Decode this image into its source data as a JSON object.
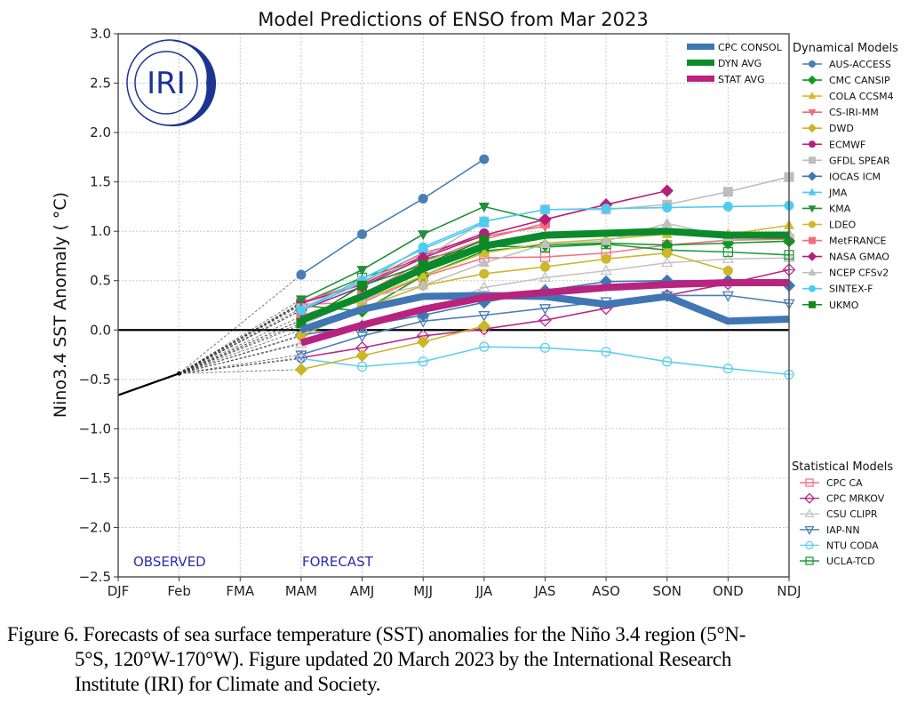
{
  "chart_data": {
    "type": "line",
    "title": "Model Predictions of ENSO from Mar 2023",
    "xlabel": "",
    "ylabel": "Nino3.4 SST Anomaly ( °C)",
    "ylim": [
      -2.5,
      3.0
    ],
    "yticks": [
      3.0,
      2.5,
      2.0,
      1.5,
      1.0,
      0.5,
      0.0,
      -0.5,
      -1.0,
      -1.5,
      -2.0,
      -2.5
    ],
    "ytick_labels": [
      "3.0",
      "2.5",
      "2.0",
      "1.5",
      "1.0",
      "0.5",
      "0.0",
      "−0.5",
      "−1.0",
      "−1.5",
      "−2.0",
      "−2.5"
    ],
    "categories": [
      "DJF",
      "Feb",
      "FMA",
      "MAM",
      "AMJ",
      "MJJ",
      "JJA",
      "JAS",
      "ASO",
      "SON",
      "OND",
      "NDJ"
    ],
    "grid": true,
    "annotations": {
      "observed": "OBSERVED",
      "forecast": "FORECAST"
    },
    "observed": {
      "name": "Observed",
      "color": "#000000",
      "x": [
        "DJF",
        "Feb"
      ],
      "values": [
        -0.66,
        -0.44
      ]
    },
    "forecast_start": "MAM",
    "averages": [
      {
        "name": "CPC CONSOL",
        "color": "#3f76b3",
        "values": [
          0.0,
          0.21,
          0.34,
          0.35,
          0.34,
          0.26,
          0.34,
          0.09,
          0.11
        ]
      },
      {
        "name": "DYN AVG",
        "color": "#0a8a2a",
        "values": [
          0.1,
          0.34,
          0.62,
          0.85,
          0.96,
          0.98,
          1.0,
          0.96,
          0.96
        ]
      },
      {
        "name": "STAT AVG",
        "color": "#b8237e",
        "values": [
          -0.13,
          0.05,
          0.21,
          0.33,
          0.38,
          0.43,
          0.46,
          0.48,
          0.48
        ]
      }
    ],
    "legend_dynamical_title": "Dynamical Models",
    "dynamical_models": [
      {
        "name": "AUS-ACCESS",
        "color": "#4a7fb5",
        "marker": "circle",
        "values": [
          0.56,
          0.97,
          1.33,
          1.73
        ]
      },
      {
        "name": "CMC CANSIP",
        "color": "#119922",
        "marker": "diamond",
        "values": [
          0.25,
          0.19,
          0.55,
          0.8,
          0.86,
          0.88,
          0.86,
          0.88,
          0.9
        ]
      },
      {
        "name": "COLA CCSM4",
        "color": "#cdbf2a",
        "marker": "triangle-up",
        "values": [
          0.1,
          0.3,
          0.55,
          0.78,
          0.88,
          0.92,
          0.97,
          0.97,
          1.06
        ]
      },
      {
        "name": "CS-IRI-MM",
        "color": "#f2687d",
        "marker": "triangle-down",
        "values": [
          0.28,
          0.48,
          0.78,
          0.95,
          1.05
        ]
      },
      {
        "name": "DWD",
        "color": "#c9b826",
        "marker": "diamond",
        "values": [
          -0.4,
          -0.26,
          -0.12,
          0.04
        ]
      },
      {
        "name": "ECMWF",
        "color": "#b51f7e",
        "marker": "circle",
        "values": [
          0.27,
          0.46,
          0.75,
          0.98
        ]
      },
      {
        "name": "GFDL SPEAR",
        "color": "#bdbdbd",
        "marker": "square",
        "values": [
          0.22,
          0.5,
          0.72,
          1.1,
          1.22,
          1.22,
          1.27,
          1.4,
          1.55
        ]
      },
      {
        "name": "IOCAS ICM",
        "color": "#3d78b4",
        "marker": "diamond",
        "values": [
          -0.05,
          0.04,
          0.15,
          0.28,
          0.4,
          0.49,
          0.5,
          0.5,
          0.45
        ]
      },
      {
        "name": "JMA",
        "color": "#4fc8ef",
        "marker": "triangle-up",
        "values": [
          0.2,
          0.52,
          0.82,
          1.08
        ]
      },
      {
        "name": "KMA",
        "color": "#1f8f3a",
        "marker": "triangle-down",
        "values": [
          0.31,
          0.61,
          0.97,
          1.25,
          1.1
        ]
      },
      {
        "name": "LDEO",
        "color": "#cdb72a",
        "marker": "circle",
        "values": [
          -0.06,
          0.22,
          0.45,
          0.57,
          0.64,
          0.72,
          0.78,
          0.6
        ]
      },
      {
        "name": "MetFRANCE",
        "color": "#f36c80",
        "marker": "square",
        "values": [
          0.14,
          0.36,
          0.69,
          0.92,
          1.08
        ]
      },
      {
        "name": "NASA GMAO",
        "color": "#b41f7a",
        "marker": "diamond",
        "values": [
          0.2,
          0.44,
          0.73,
          0.96,
          1.12,
          1.27,
          1.41
        ]
      },
      {
        "name": "NCEP CFSv2",
        "color": "#bfbfbf",
        "marker": "triangle-up",
        "values": [
          0.05,
          0.32,
          0.45,
          0.68,
          0.87,
          0.9,
          1.08,
          0.94,
          0.98
        ]
      },
      {
        "name": "SINTEX-F",
        "color": "#4ccdf0",
        "marker": "circle",
        "values": [
          0.2,
          0.48,
          0.84,
          1.1,
          1.22,
          1.23,
          1.24,
          1.25,
          1.26
        ]
      },
      {
        "name": "UKMO",
        "color": "#11891f",
        "marker": "square",
        "values": [
          0.07,
          0.45,
          0.66,
          0.91
        ]
      }
    ],
    "legend_statistical_title": "Statistical Models",
    "statistical_models": [
      {
        "name": "CPC CA",
        "color": "#f37488",
        "marker": "square-open",
        "values": [
          0.26,
          0.28,
          0.54,
          0.73,
          0.74,
          0.78,
          0.86,
          0.91,
          0.92
        ]
      },
      {
        "name": "CPC MRKOV",
        "color": "#b8298a",
        "marker": "diamond-open",
        "values": [
          -0.28,
          -0.18,
          -0.06,
          0.01,
          0.1,
          0.22,
          0.35,
          0.47,
          0.61
        ]
      },
      {
        "name": "CSU CLIPR",
        "color": "#c4c4c4",
        "marker": "triangle-up-open",
        "values": [
          -0.14,
          0.02,
          0.19,
          0.43,
          0.53,
          0.6,
          0.68,
          0.72,
          0.73
        ]
      },
      {
        "name": "IAP-NN",
        "color": "#4a7fb5",
        "marker": "triangle-down-open",
        "values": [
          -0.25,
          -0.06,
          0.09,
          0.15,
          0.22,
          0.29,
          0.35,
          0.35,
          0.27
        ]
      },
      {
        "name": "NTU CODA",
        "color": "#5fd0f0",
        "marker": "circle-open",
        "values": [
          -0.29,
          -0.37,
          -0.32,
          -0.17,
          -0.18,
          -0.22,
          -0.32,
          -0.39,
          -0.45
        ]
      },
      {
        "name": "UCLA-TCD",
        "color": "#1f9a3a",
        "marker": "square-open",
        "values": [
          0.27,
          0.53,
          0.72,
          0.85,
          0.84,
          0.87,
          0.81,
          0.79,
          0.76
        ]
      }
    ],
    "logo_text": "IRI",
    "logo_color": "#1c3592"
  },
  "caption": {
    "line1": "Figure  6. Forecasts of sea surface  temperature  (SST) anomalies  for the Niño 3.4 region  (5°N-",
    "line2": "5°S, 120°W-170°W). Figure  updated 20 March 2023 by the International  Research",
    "line3": "Institute  (IRI) for Climate  and Society."
  }
}
